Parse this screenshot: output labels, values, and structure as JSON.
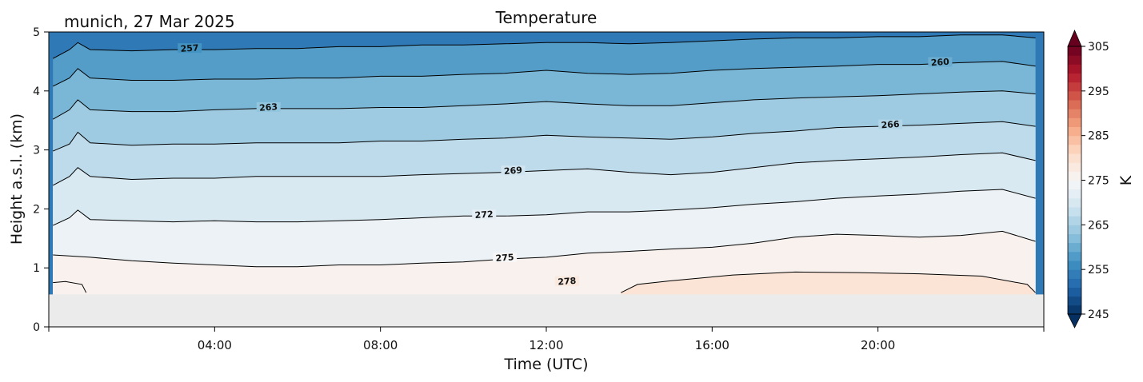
{
  "chart_data": {
    "type": "heatmap",
    "title": "Temperature",
    "subtitle": "munich, 27 Mar 2025",
    "xlabel": "Time (UTC)",
    "ylabel": "Height a.s.l. (km)",
    "xlim_hours": [
      0,
      24
    ],
    "ylim_km": [
      0,
      5
    ],
    "x_ticks": [
      {
        "hour": 4,
        "label": "04:00"
      },
      {
        "hour": 8,
        "label": "08:00"
      },
      {
        "hour": 12,
        "label": "12:00"
      },
      {
        "hour": 16,
        "label": "16:00"
      },
      {
        "hour": 20,
        "label": "20:00"
      }
    ],
    "y_ticks": [
      {
        "km": 0,
        "label": "0"
      },
      {
        "km": 1,
        "label": "1"
      },
      {
        "km": 2,
        "label": "2"
      },
      {
        "km": 3,
        "label": "3"
      },
      {
        "km": 4,
        "label": "4"
      },
      {
        "km": 5,
        "label": "5"
      }
    ],
    "no_data_below_km": 0.55,
    "no_data_color": "#ebebeb",
    "colorbar": {
      "label": "K",
      "vmin": 245,
      "vmax": 305,
      "colormap": "RdBu_r",
      "extend": "both",
      "ticks": [
        {
          "value": 245,
          "label": "245"
        },
        {
          "value": 255,
          "label": "255"
        },
        {
          "value": 265,
          "label": "265"
        },
        {
          "value": 275,
          "label": "275"
        },
        {
          "value": 285,
          "label": "285"
        },
        {
          "value": 295,
          "label": "295"
        },
        {
          "value": 305,
          "label": "305"
        }
      ]
    },
    "contours": [
      {
        "level": 278,
        "label": "278",
        "label_hour": 12.5,
        "points": [
          [
            0.1,
            0.75
          ],
          [
            0.4,
            0.77
          ],
          [
            0.8,
            0.72
          ],
          [
            0.9,
            0.58
          ]
        ]
      },
      {
        "level": 278,
        "label": "",
        "label_hour": null,
        "points": [
          [
            13.8,
            0.58
          ],
          [
            14.2,
            0.72
          ],
          [
            15.0,
            0.78
          ],
          [
            16.5,
            0.88
          ],
          [
            18.0,
            0.93
          ],
          [
            19.5,
            0.92
          ],
          [
            21.0,
            0.9
          ],
          [
            22.5,
            0.86
          ],
          [
            23.6,
            0.72
          ],
          [
            23.8,
            0.58
          ]
        ]
      },
      {
        "level": 275,
        "label": "275",
        "label_hour": 11.0,
        "points": [
          [
            0.1,
            1.22
          ],
          [
            1,
            1.18
          ],
          [
            2,
            1.12
          ],
          [
            3,
            1.08
          ],
          [
            4,
            1.05
          ],
          [
            5,
            1.02
          ],
          [
            6,
            1.02
          ],
          [
            7,
            1.05
          ],
          [
            8,
            1.05
          ],
          [
            9,
            1.08
          ],
          [
            10,
            1.1
          ],
          [
            11,
            1.15
          ],
          [
            12,
            1.18
          ],
          [
            13,
            1.25
          ],
          [
            14,
            1.28
          ],
          [
            15,
            1.32
          ],
          [
            16,
            1.35
          ],
          [
            17,
            1.42
          ],
          [
            18,
            1.52
          ],
          [
            19,
            1.57
          ],
          [
            20,
            1.55
          ],
          [
            21,
            1.52
          ],
          [
            22,
            1.55
          ],
          [
            23,
            1.62
          ],
          [
            23.8,
            1.45
          ]
        ]
      },
      {
        "level": 272,
        "label": "272",
        "label_hour": 10.5,
        "points": [
          [
            0.1,
            1.72
          ],
          [
            0.5,
            1.85
          ],
          [
            0.7,
            1.98
          ],
          [
            1,
            1.82
          ],
          [
            2,
            1.8
          ],
          [
            3,
            1.78
          ],
          [
            4,
            1.8
          ],
          [
            5,
            1.78
          ],
          [
            6,
            1.78
          ],
          [
            7,
            1.8
          ],
          [
            8,
            1.82
          ],
          [
            9,
            1.85
          ],
          [
            10,
            1.88
          ],
          [
            11,
            1.88
          ],
          [
            12,
            1.9
          ],
          [
            13,
            1.95
          ],
          [
            14,
            1.95
          ],
          [
            15,
            1.98
          ],
          [
            16,
            2.02
          ],
          [
            17,
            2.08
          ],
          [
            18,
            2.12
          ],
          [
            19,
            2.18
          ],
          [
            20,
            2.22
          ],
          [
            21,
            2.25
          ],
          [
            22,
            2.3
          ],
          [
            23,
            2.33
          ],
          [
            23.8,
            2.18
          ]
        ]
      },
      {
        "level": 269,
        "label": "269",
        "label_hour": 11.2,
        "points": [
          [
            0.1,
            2.4
          ],
          [
            0.5,
            2.55
          ],
          [
            0.7,
            2.7
          ],
          [
            1,
            2.55
          ],
          [
            2,
            2.5
          ],
          [
            3,
            2.52
          ],
          [
            4,
            2.52
          ],
          [
            5,
            2.55
          ],
          [
            6,
            2.55
          ],
          [
            7,
            2.55
          ],
          [
            8,
            2.55
          ],
          [
            9,
            2.58
          ],
          [
            10,
            2.6
          ],
          [
            11,
            2.62
          ],
          [
            12,
            2.65
          ],
          [
            13,
            2.68
          ],
          [
            14,
            2.62
          ],
          [
            15,
            2.58
          ],
          [
            16,
            2.62
          ],
          [
            17,
            2.7
          ],
          [
            18,
            2.78
          ],
          [
            19,
            2.82
          ],
          [
            20,
            2.85
          ],
          [
            21,
            2.88
          ],
          [
            22,
            2.92
          ],
          [
            23,
            2.95
          ],
          [
            23.8,
            2.82
          ]
        ]
      },
      {
        "level": 266,
        "label": "266",
        "label_hour": 20.3,
        "points": [
          [
            0.1,
            2.98
          ],
          [
            0.5,
            3.1
          ],
          [
            0.7,
            3.3
          ],
          [
            1,
            3.12
          ],
          [
            2,
            3.08
          ],
          [
            3,
            3.1
          ],
          [
            4,
            3.1
          ],
          [
            5,
            3.12
          ],
          [
            6,
            3.12
          ],
          [
            7,
            3.12
          ],
          [
            8,
            3.15
          ],
          [
            9,
            3.15
          ],
          [
            10,
            3.18
          ],
          [
            11,
            3.2
          ],
          [
            12,
            3.25
          ],
          [
            13,
            3.22
          ],
          [
            14,
            3.2
          ],
          [
            15,
            3.18
          ],
          [
            16,
            3.22
          ],
          [
            17,
            3.28
          ],
          [
            18,
            3.32
          ],
          [
            19,
            3.38
          ],
          [
            20,
            3.4
          ],
          [
            21,
            3.42
          ],
          [
            22,
            3.45
          ],
          [
            23,
            3.48
          ],
          [
            23.8,
            3.4
          ]
        ]
      },
      {
        "level": 263,
        "label": "263",
        "label_hour": 5.3,
        "points": [
          [
            0.1,
            3.52
          ],
          [
            0.5,
            3.68
          ],
          [
            0.7,
            3.85
          ],
          [
            1,
            3.68
          ],
          [
            2,
            3.65
          ],
          [
            3,
            3.65
          ],
          [
            4,
            3.68
          ],
          [
            5,
            3.7
          ],
          [
            6,
            3.7
          ],
          [
            7,
            3.7
          ],
          [
            8,
            3.72
          ],
          [
            9,
            3.72
          ],
          [
            10,
            3.75
          ],
          [
            11,
            3.78
          ],
          [
            12,
            3.82
          ],
          [
            13,
            3.78
          ],
          [
            14,
            3.75
          ],
          [
            15,
            3.75
          ],
          [
            16,
            3.8
          ],
          [
            17,
            3.85
          ],
          [
            18,
            3.88
          ],
          [
            19,
            3.9
          ],
          [
            20,
            3.92
          ],
          [
            21,
            3.95
          ],
          [
            22,
            3.98
          ],
          [
            23,
            4.0
          ],
          [
            23.8,
            3.95
          ]
        ]
      },
      {
        "level": 260,
        "label": "260",
        "label_hour": 21.5,
        "points": [
          [
            0.1,
            4.08
          ],
          [
            0.5,
            4.22
          ],
          [
            0.7,
            4.38
          ],
          [
            1,
            4.22
          ],
          [
            2,
            4.18
          ],
          [
            3,
            4.18
          ],
          [
            4,
            4.2
          ],
          [
            5,
            4.2
          ],
          [
            6,
            4.22
          ],
          [
            7,
            4.22
          ],
          [
            8,
            4.25
          ],
          [
            9,
            4.25
          ],
          [
            10,
            4.28
          ],
          [
            11,
            4.3
          ],
          [
            12,
            4.35
          ],
          [
            13,
            4.3
          ],
          [
            14,
            4.28
          ],
          [
            15,
            4.3
          ],
          [
            16,
            4.35
          ],
          [
            17,
            4.38
          ],
          [
            18,
            4.4
          ],
          [
            19,
            4.42
          ],
          [
            20,
            4.45
          ],
          [
            21,
            4.45
          ],
          [
            22,
            4.48
          ],
          [
            23,
            4.5
          ],
          [
            23.8,
            4.42
          ]
        ]
      },
      {
        "level": 257,
        "label": "257",
        "label_hour": 3.4,
        "points": [
          [
            0.1,
            4.55
          ],
          [
            0.5,
            4.7
          ],
          [
            0.7,
            4.82
          ],
          [
            1,
            4.7
          ],
          [
            2,
            4.68
          ],
          [
            3,
            4.7
          ],
          [
            4,
            4.7
          ],
          [
            5,
            4.72
          ],
          [
            6,
            4.72
          ],
          [
            7,
            4.75
          ],
          [
            8,
            4.75
          ],
          [
            9,
            4.78
          ],
          [
            10,
            4.78
          ],
          [
            11,
            4.8
          ],
          [
            12,
            4.82
          ],
          [
            13,
            4.82
          ],
          [
            14,
            4.8
          ],
          [
            15,
            4.82
          ],
          [
            16,
            4.85
          ],
          [
            17,
            4.88
          ],
          [
            18,
            4.9
          ],
          [
            19,
            4.9
          ],
          [
            20,
            4.92
          ],
          [
            21,
            4.92
          ],
          [
            22,
            4.95
          ],
          [
            23,
            4.95
          ],
          [
            23.8,
            4.9
          ]
        ]
      }
    ]
  }
}
